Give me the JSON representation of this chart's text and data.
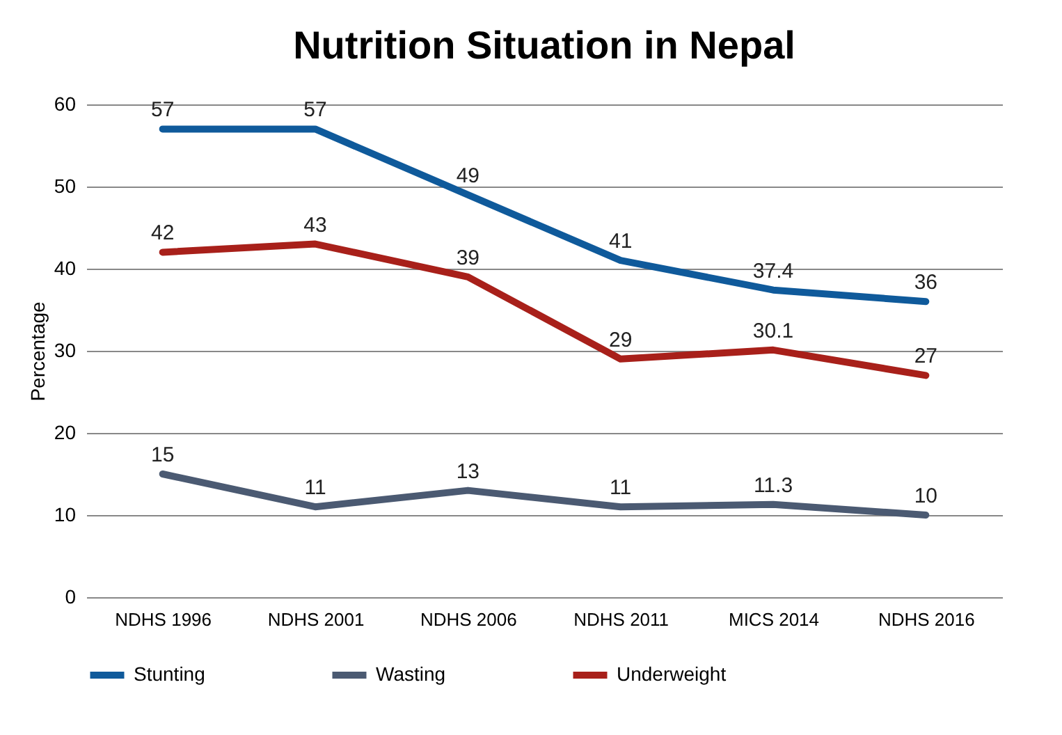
{
  "chart_data": {
    "type": "line",
    "title": "Nutrition Situation in Nepal",
    "ylabel": "Percentage",
    "categories": [
      "NDHS 1996",
      "NDHS 2001",
      "NDHS 2006",
      "NDHS 2011",
      "MICS 2014",
      "NDHS 2016"
    ],
    "series": [
      {
        "name": "Stunting",
        "color": "#0f5a9b",
        "values": [
          57,
          57,
          49,
          41,
          37.4,
          36
        ]
      },
      {
        "name": "Wasting",
        "color": "#4b5a72",
        "values": [
          15,
          11,
          13,
          11,
          11.3,
          10
        ]
      },
      {
        "name": "Underweight",
        "color": "#a8201a",
        "values": [
          42,
          43,
          39,
          29,
          30.1,
          27
        ]
      }
    ],
    "ylim": [
      0,
      60
    ],
    "yticks": [
      0,
      10,
      20,
      30,
      40,
      50,
      60
    ],
    "grid": "y",
    "legend": "bottom",
    "data_labels": true,
    "line_style": "solid",
    "marker": "none"
  }
}
